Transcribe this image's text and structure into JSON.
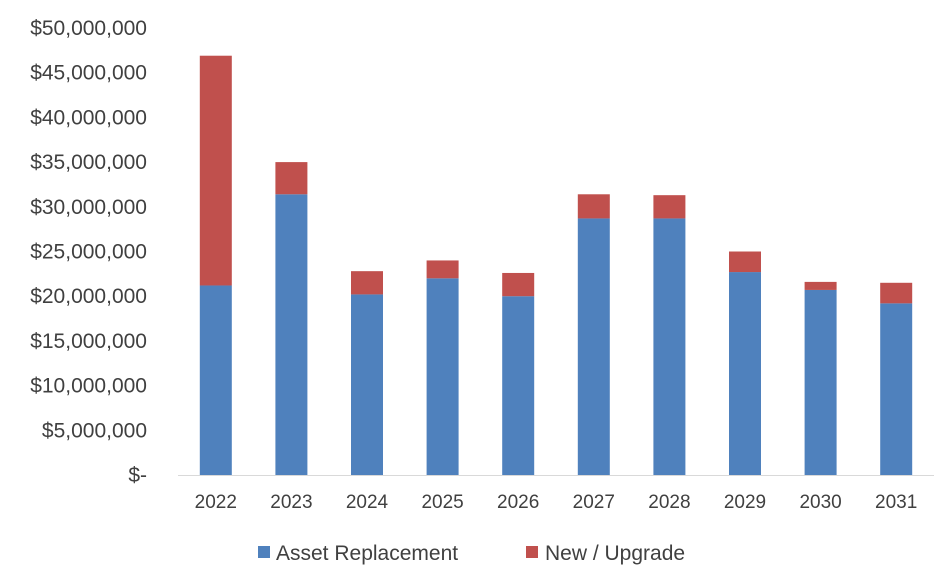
{
  "chart_data": {
    "type": "bar",
    "stacked": true,
    "categories": [
      "2022",
      "2023",
      "2024",
      "2025",
      "2026",
      "2027",
      "2028",
      "2029",
      "2030",
      "2031"
    ],
    "series": [
      {
        "name": "Asset Replacement",
        "color": "#4F81BD",
        "values": [
          21200000,
          31400000,
          20200000,
          22000000,
          20000000,
          28700000,
          28700000,
          22700000,
          20700000,
          19200000
        ]
      },
      {
        "name": "New / Upgrade",
        "color": "#C0504D",
        "values": [
          25700000,
          3600000,
          2600000,
          2000000,
          2600000,
          2700000,
          2600000,
          2300000,
          900000,
          2300000
        ]
      }
    ],
    "ylim": [
      0,
      50000000
    ],
    "y_tick_labels": [
      "$-",
      "$5,000,000",
      "$10,000,000",
      "$15,000,000",
      "$20,000,000",
      "$25,000,000",
      "$30,000,000",
      "$35,000,000",
      "$40,000,000",
      "$45,000,000",
      "$50,000,000"
    ],
    "grid": false,
    "legend_position": "bottom"
  }
}
